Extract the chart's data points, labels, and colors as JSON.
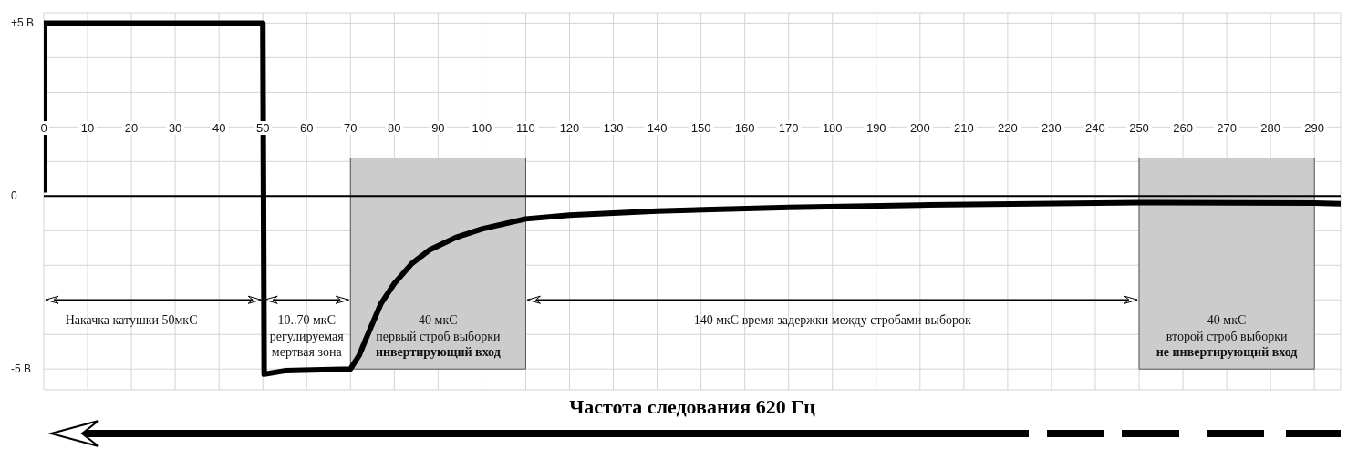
{
  "chart_data": {
    "type": "line",
    "x": [
      0,
      0,
      50,
      50.3,
      55,
      70,
      72,
      74.3,
      77,
      80,
      84,
      88,
      94,
      100,
      110,
      120,
      140,
      170,
      200,
      250,
      290,
      296
    ],
    "series": [
      {
        "color": "#000000",
        "values": [
          0.1,
          5,
          5,
          -5.15,
          -5.05,
          -5,
          -4.6,
          -3.9,
          -3.1,
          -2.53,
          -1.95,
          -1.56,
          -1.2,
          -0.95,
          -0.66,
          -0.55,
          -0.43,
          -0.33,
          -0.26,
          -0.19,
          -0.2,
          -0.22
        ]
      }
    ],
    "xlim": [
      0,
      296
    ],
    "xticks": [
      0,
      10,
      20,
      30,
      40,
      50,
      60,
      70,
      80,
      90,
      100,
      110,
      120,
      130,
      140,
      150,
      160,
      170,
      180,
      190,
      200,
      210,
      220,
      230,
      240,
      250,
      260,
      270,
      280,
      290
    ],
    "ylim": [
      -5.6,
      5.3
    ],
    "yticks": [
      {
        "value": 5,
        "label": "+5 В"
      },
      {
        "value": 4,
        "label": null
      },
      {
        "value": 3,
        "label": null
      },
      {
        "value": 2,
        "label": null
      },
      {
        "value": 1,
        "label": null
      },
      0,
      {
        "value": -1,
        "label": null
      },
      {
        "value": -2,
        "label": null
      },
      {
        "value": -3,
        "label": null
      },
      {
        "value": -4,
        "label": null
      },
      {
        "value": -5,
        "label": "-5 В"
      }
    ],
    "grid": true,
    "legend": false,
    "marker": "none",
    "line_style": "solid",
    "ref_lines": [
      {
        "axis": "y",
        "value": 0,
        "color": "#000000"
      }
    ],
    "bands": [
      {
        "axis": "x",
        "from": 70,
        "to": 110,
        "label": "40 мкС\nпервый строб выборки\nинвертирующий вход",
        "color": "#cccccc"
      },
      {
        "axis": "x",
        "from": 250,
        "to": 290,
        "label": "40 мкС\nвторой строб выборки\nне инвертирующий вход",
        "color": "#cccccc"
      }
    ],
    "annotations": [
      "Накачка катушки 50мкС",
      "10..70 мкС\nрегулируемая\nмертвая зона",
      "140 мкС время задержки между стробами выборок",
      "Частота следования 620 Гц"
    ]
  }
}
